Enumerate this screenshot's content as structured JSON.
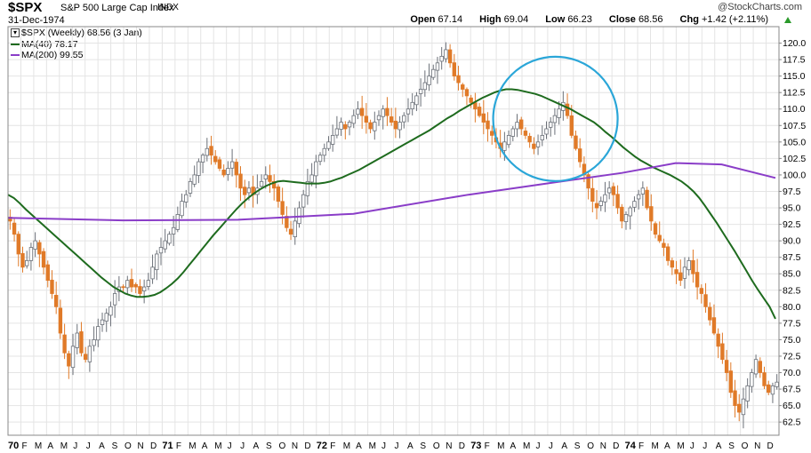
{
  "header": {
    "ticker": "$SPX",
    "name": "S&P 500 Large Cap Index",
    "exchange": "INDX",
    "date": "31-Dec-1974",
    "brand": "@StockCharts.com",
    "open_label": "Open",
    "open": "67.14",
    "high_label": "High",
    "high": "69.04",
    "low_label": "Low",
    "low": "66.23",
    "close_label": "Close",
    "close": "68.56",
    "chg_label": "Chg",
    "chg": "+1.42 (+2.11%)"
  },
  "legend": {
    "price": "$SPX (Weekly) 68.56 (3 Jan)",
    "ma40": "MA(40) 78.17",
    "ma200": "MA(200) 99.55"
  },
  "colors": {
    "up": "#9aa0a8",
    "down": "#e07a28",
    "ma40": "#1e6b1e",
    "ma200": "#8a3dc8",
    "circle": "#2aa6d8",
    "grid": "#e4e4e4"
  },
  "chart_data": {
    "type": "candlestick",
    "y_ticks": [
      "62.5",
      "65.0",
      "67.5",
      "70.0",
      "72.5",
      "75.0",
      "77.5",
      "80.0",
      "82.5",
      "85.0",
      "87.5",
      "90.0",
      "92.5",
      "95.0",
      "97.5",
      "100.0",
      "102.5",
      "105.0",
      "107.5",
      "110.0",
      "112.5",
      "115.0",
      "117.5",
      "120.0"
    ],
    "ylim": [
      60.5,
      122.5
    ],
    "x_labels": [
      "70",
      "F",
      "M",
      "A",
      "M",
      "J",
      "J",
      "A",
      "S",
      "O",
      "N",
      "D",
      "71",
      "F",
      "M",
      "A",
      "M",
      "J",
      "J",
      "A",
      "S",
      "O",
      "N",
      "D",
      "72",
      "F",
      "M",
      "A",
      "M",
      "J",
      "J",
      "A",
      "S",
      "O",
      "N",
      "D",
      "73",
      "F",
      "M",
      "A",
      "M",
      "J",
      "J",
      "A",
      "S",
      "O",
      "N",
      "D",
      "74",
      "F",
      "M",
      "A",
      "M",
      "J",
      "J",
      "A",
      "S",
      "O",
      "N",
      "D"
    ],
    "x_year_labels": [
      "70",
      "71",
      "72",
      "73",
      "74"
    ],
    "weekly_closes": [
      93,
      91,
      88,
      86,
      87,
      89,
      90,
      88,
      86,
      84,
      82,
      80,
      76,
      73,
      71,
      74,
      76,
      73,
      72,
      74,
      75,
      77,
      78,
      79,
      80,
      82,
      83,
      83,
      84,
      83,
      83,
      82,
      83,
      84,
      86,
      88,
      89,
      90,
      91,
      92,
      94,
      96,
      97,
      99,
      100,
      102,
      103,
      104,
      103,
      102,
      101,
      100,
      101,
      102,
      100,
      98,
      97,
      98,
      97,
      98,
      99,
      100,
      99,
      98,
      96,
      94,
      92,
      91,
      93,
      95,
      97,
      99,
      100,
      102,
      103,
      104,
      105,
      106,
      107,
      108,
      107,
      108,
      109,
      110,
      109,
      108,
      107,
      108,
      109,
      110,
      109,
      108,
      107,
      108,
      109,
      110,
      111,
      112,
      113,
      114,
      115,
      116,
      117,
      118,
      119,
      117,
      115,
      114,
      113,
      112,
      111,
      110,
      109,
      108,
      107,
      106,
      105,
      104,
      105,
      106,
      107,
      108,
      107,
      106,
      105,
      104,
      105,
      106,
      107,
      108,
      109,
      110,
      111,
      109,
      106,
      104,
      102,
      100,
      98,
      96,
      95,
      96,
      97,
      98,
      97,
      95,
      93,
      94,
      95,
      96,
      97,
      98,
      95,
      93,
      91,
      90,
      89,
      87,
      86,
      85,
      84,
      86,
      87,
      85,
      83,
      82,
      80,
      78,
      76,
      74,
      72,
      70,
      67,
      65,
      64,
      66,
      68,
      70,
      72,
      70,
      68,
      67,
      68,
      68.56
    ],
    "ma40": [
      97,
      96.5,
      95.7,
      94.8,
      94,
      93.2,
      92.4,
      91.6,
      90.8,
      90,
      89.2,
      88.4,
      87.6,
      86.8,
      86,
      85.2,
      84.4,
      83.7,
      83,
      82.5,
      82,
      81.7,
      81.5,
      81.5,
      81.6,
      81.8,
      82.2,
      82.8,
      83.5,
      84.3,
      85.3,
      86.4,
      87.5,
      88.6,
      89.7,
      90.8,
      91.8,
      92.8,
      93.8,
      94.8,
      95.7,
      96.5,
      97.2,
      97.8,
      98.3,
      98.7,
      99,
      99.1,
      99,
      98.9,
      98.8,
      98.7,
      98.7,
      98.7,
      98.8,
      99,
      99.3,
      99.6,
      100,
      100.4,
      100.8,
      101.3,
      101.8,
      102.3,
      102.8,
      103.3,
      103.8,
      104.3,
      104.8,
      105.3,
      105.8,
      106.3,
      106.8,
      107.4,
      108,
      108.6,
      109.1,
      109.7,
      110.2,
      110.7,
      111.2,
      111.7,
      112.1,
      112.5,
      112.8,
      113,
      113,
      112.9,
      112.7,
      112.5,
      112.3,
      112,
      111.6,
      111.2,
      110.8,
      110.4,
      110,
      109.5,
      109,
      108.5,
      108,
      107.3,
      106.5,
      105.8,
      105,
      104.2,
      103.5,
      102.8,
      102.2,
      101.7,
      101.2,
      100.8,
      100.4,
      100,
      99.5,
      99,
      98.3,
      97.5,
      96.5,
      95.3,
      94,
      92.7,
      91.3,
      89.9,
      88.5,
      87,
      85.5,
      84,
      82.6,
      81.3,
      80,
      78.17
    ],
    "ma200_start": 93.5,
    "ma200_end": 99.55
  }
}
